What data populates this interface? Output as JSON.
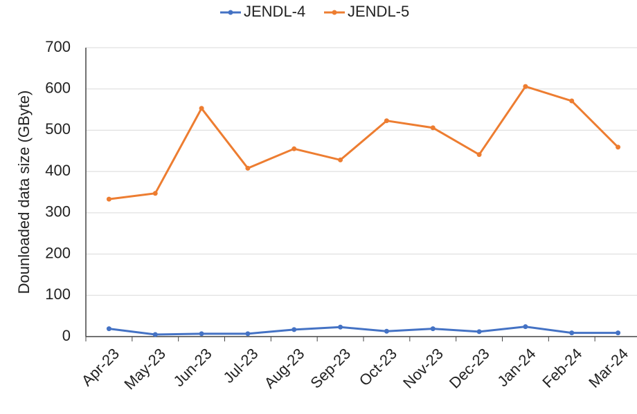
{
  "chart_data": {
    "type": "line",
    "ylabel": "Dounloaded data size (GByte)",
    "categories": [
      "Apr-23",
      "May-23",
      "Jun-23",
      "Jul-23",
      "Aug-23",
      "Sep-23",
      "Oct-23",
      "Nov-23",
      "Dec-23",
      "Jan-24",
      "Feb-24",
      "Mar-24"
    ],
    "series": [
      {
        "name": "JENDL-4",
        "color": "#4472c4",
        "values": [
          19,
          5,
          7,
          7,
          17,
          23,
          13,
          19,
          12,
          24,
          9,
          9
        ]
      },
      {
        "name": "JENDL-5",
        "color": "#ed7d31",
        "values": [
          333,
          347,
          553,
          408,
          455,
          428,
          523,
          506,
          441,
          606,
          571,
          459
        ]
      }
    ],
    "ylim": [
      0,
      700
    ],
    "yticks": [
      0,
      100,
      200,
      300,
      400,
      500,
      600,
      700
    ],
    "grid": true,
    "legend": "top"
  }
}
